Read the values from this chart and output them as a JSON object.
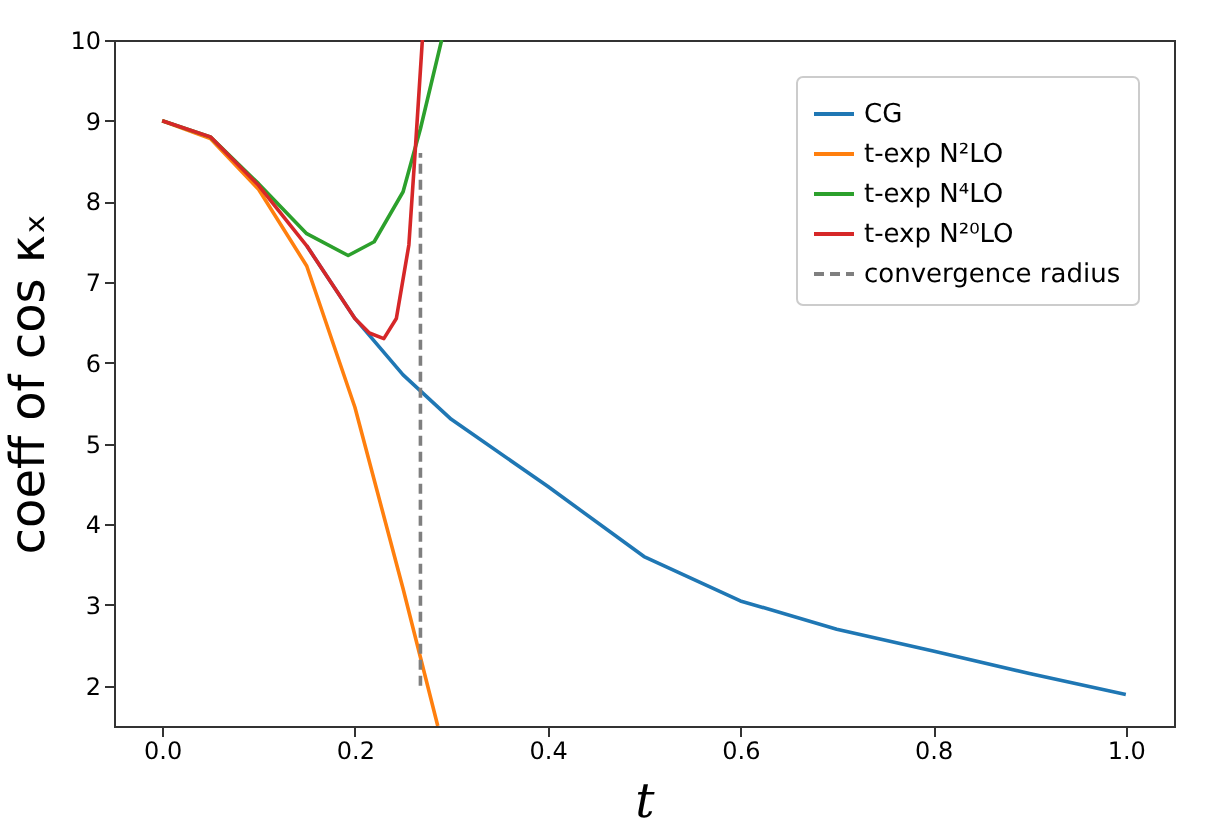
{
  "chart_data": {
    "type": "line",
    "xlabel": "t",
    "ylabel": "coeff of cos κₓ",
    "xlim": [
      -0.05,
      1.05
    ],
    "ylim": [
      1.5,
      10
    ],
    "xticks": [
      {
        "value": 0,
        "label": "0.0"
      },
      {
        "value": 0.2,
        "label": "0.2"
      },
      {
        "value": 0.4,
        "label": "0.4"
      },
      {
        "value": 0.6,
        "label": "0.6"
      },
      {
        "value": 0.8,
        "label": "0.8"
      },
      {
        "value": 1,
        "label": "1.0"
      }
    ],
    "yticks": [
      2,
      3,
      4,
      5,
      6,
      7,
      8,
      9,
      10
    ],
    "grid": false,
    "legend": "top right",
    "line_style": "solid",
    "series": [
      {
        "name": "CG",
        "color": "#1f77b4",
        "x": [
          0.15,
          0.2,
          0.25,
          0.3,
          0.4,
          0.5,
          0.6,
          0.7,
          0.8,
          0.9,
          1.0
        ],
        "values": [
          7.45,
          6.55,
          5.85,
          5.3,
          4.47,
          3.6,
          3.05,
          2.7,
          2.43,
          2.15,
          1.89
        ]
      },
      {
        "name": "t-exp N²LO",
        "color": "#ff7f0e",
        "x": [
          0,
          0.05,
          0.1,
          0.15,
          0.2,
          0.25,
          0.286
        ],
        "values": [
          9.0,
          8.78,
          8.15,
          7.2,
          5.45,
          3.2,
          1.5
        ]
      },
      {
        "name": "t-exp N⁴LO",
        "color": "#2ca02c",
        "x": [
          0,
          0.05,
          0.1,
          0.15,
          0.193,
          0.22,
          0.25,
          0.268,
          0.29
        ],
        "values": [
          9.0,
          8.8,
          8.22,
          7.6,
          7.33,
          7.5,
          8.12,
          8.9,
          10
        ]
      },
      {
        "name": "t-exp N²⁰LO",
        "color": "#d62728",
        "x": [
          0,
          0.05,
          0.1,
          0.15,
          0.2,
          0.215,
          0.23,
          0.243,
          0.256,
          0.263,
          0.27
        ],
        "values": [
          9.0,
          8.8,
          8.2,
          7.45,
          6.55,
          6.37,
          6.3,
          6.55,
          7.46,
          8.7,
          10
        ]
      },
      {
        "name": "convergence radius",
        "color": "#7f7f7f",
        "line_style": "dashed",
        "x": [
          0.268,
          0.268
        ],
        "values": [
          2.0,
          8.6
        ]
      }
    ]
  }
}
